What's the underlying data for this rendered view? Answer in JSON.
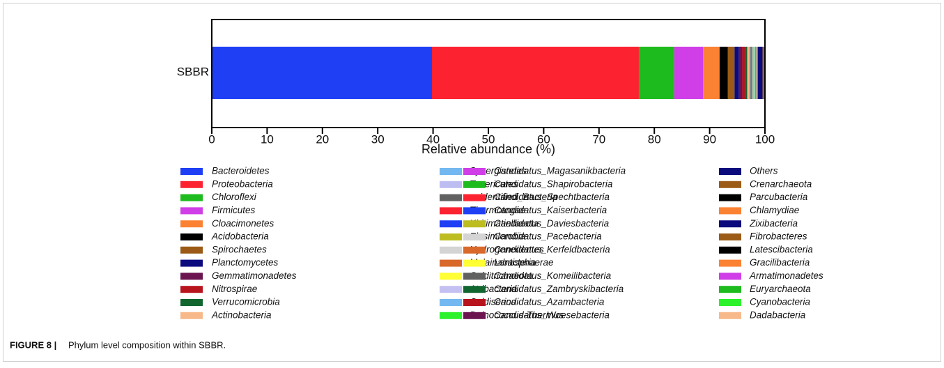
{
  "caption_label": "FIGURE 8 |",
  "caption": "Phylum level composition within SBBR.",
  "chart_data": {
    "type": "stacked_barh",
    "categories": [
      "SBBR"
    ],
    "xlabel": "Relative abundance (%)",
    "xlim": [
      0,
      100
    ],
    "xticks": [
      0,
      10,
      20,
      30,
      40,
      50,
      60,
      70,
      80,
      90,
      100
    ],
    "series": [
      {
        "name": "Bacteroidetes",
        "color": "#1f3ff5",
        "values": [
          39.8
        ]
      },
      {
        "name": "Proteobacteria",
        "color": "#fc2230",
        "values": [
          37.4
        ]
      },
      {
        "name": "Chloroflexi",
        "color": "#1dbb1d",
        "values": [
          6.4
        ]
      },
      {
        "name": "Firmicutes",
        "color": "#cf3ee6",
        "values": [
          5.2
        ]
      },
      {
        "name": "Cloacimonetes",
        "color": "#fb8233",
        "values": [
          3.0
        ]
      },
      {
        "name": "Acidobacteria",
        "color": "#000000",
        "values": [
          1.5
        ]
      },
      {
        "name": "Spirochaetes",
        "color": "#9b5b16",
        "values": [
          1.2
        ]
      },
      {
        "name": "Planctomycetes",
        "color": "#0b0b7d",
        "values": [
          0.8
        ]
      },
      {
        "name": "Gemmatimonadetes",
        "color": "#6b1450",
        "values": [
          0.6
        ]
      },
      {
        "name": "Nitrospirae",
        "color": "#b8141e",
        "values": [
          0.5
        ]
      },
      {
        "name": "Verrucomicrobia",
        "color": "#116630",
        "values": [
          0.4
        ]
      },
      {
        "name": "Actinobacteria",
        "color": "#f8b98a",
        "values": [
          0.3
        ]
      },
      {
        "name": "Synergistetes",
        "color": "#73b8f0",
        "values": [
          0.15
        ]
      },
      {
        "name": "Tenericutes",
        "color": "#bdbdf2",
        "values": [
          0.12
        ]
      },
      {
        "name": "unidentified_Bacteria",
        "color": "#616161",
        "values": [
          0.12
        ]
      },
      {
        "name": "Thermotogae",
        "color": "#fc2230",
        "values": [
          0.1
        ]
      },
      {
        "name": "Kiritimatiellaeota",
        "color": "#1f3ff5",
        "values": [
          0.1
        ]
      },
      {
        "name": "Elusimicrobia",
        "color": "#bdbd22",
        "values": [
          0.1
        ]
      },
      {
        "name": "Hydrogenedentes",
        "color": "#d4d4d4",
        "values": [
          0.08
        ]
      },
      {
        "name": "Melainabacteria",
        "color": "#d9692a",
        "values": [
          0.08
        ]
      },
      {
        "name": "Calditrichaeota",
        "color": "#ffff33",
        "values": [
          0.08
        ]
      },
      {
        "name": "Atribacteria",
        "color": "#c5c0f2",
        "values": [
          0.07
        ]
      },
      {
        "name": "Caldiserica",
        "color": "#73b8f0",
        "values": [
          0.07
        ]
      },
      {
        "name": "Deinococcus-Thermus",
        "color": "#2cf22c",
        "values": [
          0.06
        ]
      },
      {
        "name": "Candidatus_Magasanikbacteria",
        "color": "#cf3ee6",
        "values": [
          0.06
        ]
      },
      {
        "name": "Candidatus_Shapirobacteria",
        "color": "#1dbb1d",
        "values": [
          0.05
        ]
      },
      {
        "name": "Candidatus_Spechtbacteria",
        "color": "#fc2230",
        "values": [
          0.05
        ]
      },
      {
        "name": "Candidatus_Kaiserbacteria",
        "color": "#1f3ff5",
        "values": [
          0.05
        ]
      },
      {
        "name": "Candidatus_Daviesbacteria",
        "color": "#bdbd22",
        "values": [
          0.05
        ]
      },
      {
        "name": "Candidatus_Pacebacteria",
        "color": "#d4d4d4",
        "values": [
          0.04
        ]
      },
      {
        "name": "Candidatus_Kerfeldbacteria",
        "color": "#d9692a",
        "values": [
          0.04
        ]
      },
      {
        "name": "Lentisphaerae",
        "color": "#ffff33",
        "values": [
          0.04
        ]
      },
      {
        "name": "Candidatus_Komeilibacteria",
        "color": "#616161",
        "values": [
          0.04
        ]
      },
      {
        "name": "Candidatus_Zambryskibacteria",
        "color": "#116630",
        "values": [
          0.03
        ]
      },
      {
        "name": "Candidatus_Azambacteria",
        "color": "#b8141e",
        "values": [
          0.03
        ]
      },
      {
        "name": "Candidatus_Woesebacteria",
        "color": "#6b1450",
        "values": [
          0.03
        ]
      },
      {
        "name": "Others",
        "color": "#0b0b7d",
        "values": [
          0.83
        ]
      },
      {
        "name": "Crenarchaeota",
        "color": "#9b5b16",
        "values": [
          0.05
        ]
      },
      {
        "name": "Parcubacteria",
        "color": "#000000",
        "values": [
          0.05
        ]
      },
      {
        "name": "Chlamydiae",
        "color": "#fb8233",
        "values": [
          0.05
        ]
      },
      {
        "name": "Zixibacteria",
        "color": "#0b0b7d",
        "values": [
          0.04
        ]
      },
      {
        "name": "Fibrobacteres",
        "color": "#9b5b16",
        "values": [
          0.04
        ]
      },
      {
        "name": "Latescibacteria",
        "color": "#000000",
        "values": [
          0.04
        ]
      },
      {
        "name": "Gracilibacteria",
        "color": "#fb8233",
        "values": [
          0.04
        ]
      },
      {
        "name": "Armatimonadetes",
        "color": "#cf3ee6",
        "values": [
          0.03
        ]
      },
      {
        "name": "Euryarchaeota",
        "color": "#1dbb1d",
        "values": [
          0.03
        ]
      },
      {
        "name": "Cyanobacteria",
        "color": "#2cf22c",
        "values": [
          0.03
        ]
      },
      {
        "name": "Dadabacteria",
        "color": "#f8b98a",
        "values": [
          0.03
        ]
      }
    ]
  }
}
